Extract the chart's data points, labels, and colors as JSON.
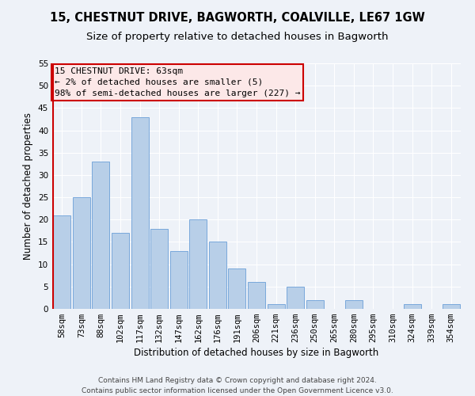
{
  "title": "15, CHESTNUT DRIVE, BAGWORTH, COALVILLE, LE67 1GW",
  "subtitle": "Size of property relative to detached houses in Bagworth",
  "xlabel": "Distribution of detached houses by size in Bagworth",
  "ylabel": "Number of detached properties",
  "categories": [
    "58sqm",
    "73sqm",
    "88sqm",
    "102sqm",
    "117sqm",
    "132sqm",
    "147sqm",
    "162sqm",
    "176sqm",
    "191sqm",
    "206sqm",
    "221sqm",
    "236sqm",
    "250sqm",
    "265sqm",
    "280sqm",
    "295sqm",
    "310sqm",
    "324sqm",
    "339sqm",
    "354sqm"
  ],
  "values": [
    21,
    25,
    33,
    17,
    43,
    18,
    13,
    20,
    15,
    9,
    6,
    1,
    5,
    2,
    0,
    2,
    0,
    0,
    1,
    0,
    1
  ],
  "bar_color": "#b8cfe8",
  "bar_edgecolor": "#6a9fd8",
  "ylim": [
    0,
    55
  ],
  "yticks": [
    0,
    5,
    10,
    15,
    20,
    25,
    30,
    35,
    40,
    45,
    50,
    55
  ],
  "annotation_line1": "15 CHESTNUT DRIVE: 63sqm",
  "annotation_line2": "← 2% of detached houses are smaller (5)",
  "annotation_line3": "98% of semi-detached houses are larger (227) →",
  "footer_line1": "Contains HM Land Registry data © Crown copyright and database right 2024.",
  "footer_line2": "Contains public sector information licensed under the Open Government Licence v3.0.",
  "bg_color": "#eef2f8",
  "grid_color": "#ffffff",
  "title_fontsize": 10.5,
  "subtitle_fontsize": 9.5,
  "axis_label_fontsize": 8.5,
  "tick_fontsize": 7.5,
  "annotation_fontsize": 8,
  "footer_fontsize": 6.5
}
